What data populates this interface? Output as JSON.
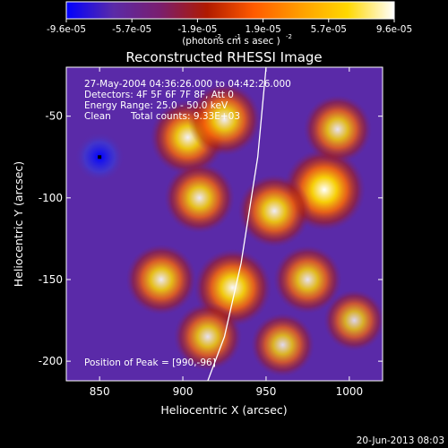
{
  "chart_data": {
    "type": "heatmap",
    "title": "Reconstructed RHESSI Image",
    "xlabel": "Heliocentric X (arcsec)",
    "ylabel": "Heliocentric Y (arcsec)",
    "xlim": [
      830,
      1020
    ],
    "ylim": [
      -212,
      -20
    ],
    "x_ticks": [
      "850",
      "900",
      "950",
      "1000"
    ],
    "x_tick_values": [
      850,
      900,
      950,
      1000
    ],
    "y_ticks": [
      "-50",
      "-100",
      "-150",
      "-200"
    ],
    "y_tick_values": [
      -50,
      -100,
      -150,
      -200
    ],
    "colorbar": {
      "ticks": [
        "-9.6e-05",
        "-5.7e-05",
        "-1.9e-05",
        "1.9e-05",
        "5.7e-05",
        "9.6e-05"
      ],
      "range": [
        -9.6e-05,
        9.6e-05
      ],
      "units_label": "(photons cm  s  asec )",
      "units_exponents": [
        "-2",
        "-1",
        "-2"
      ],
      "colors": [
        "#0000ff",
        "#5a2aa8",
        "#7a1e6e",
        "#b01a00",
        "#ff5a00",
        "#ff9e00",
        "#ffd800",
        "#ffffff"
      ]
    },
    "annotations": [
      "27-May-2004 04:36:26.000 to 04:42:26.000",
      "Detectors: 4F 5F 6F 7F 8F, Att 0",
      "Energy Range: 25.0 - 50.0 keV",
      "Clean",
      "Total counts: 9.33E+03"
    ],
    "peak_label": "Position of Peak = [990,-96]",
    "peak_position": [
      990,
      -96
    ],
    "bright_sources": [
      {
        "x": 985,
        "y": -95,
        "intensity": 1.0
      },
      {
        "x": 903,
        "y": -63,
        "intensity": 0.85
      },
      {
        "x": 925,
        "y": -52,
        "intensity": 0.8
      },
      {
        "x": 993,
        "y": -58,
        "intensity": 0.7
      },
      {
        "x": 910,
        "y": -100,
        "intensity": 0.75
      },
      {
        "x": 955,
        "y": -108,
        "intensity": 0.8
      },
      {
        "x": 887,
        "y": -150,
        "intensity": 0.75
      },
      {
        "x": 930,
        "y": -155,
        "intensity": 0.9
      },
      {
        "x": 975,
        "y": -150,
        "intensity": 0.7
      },
      {
        "x": 915,
        "y": -185,
        "intensity": 0.7
      },
      {
        "x": 960,
        "y": -190,
        "intensity": 0.6
      },
      {
        "x": 1003,
        "y": -175,
        "intensity": 0.55
      }
    ],
    "minimum_position": [
      850,
      -75
    ],
    "limb_curve": [
      [
        950,
        -20
      ],
      [
        945,
        -75
      ],
      [
        935,
        -140
      ],
      [
        925,
        -185
      ],
      [
        915,
        -212
      ]
    ]
  },
  "footer": {
    "date": "20-Jun-2013 08:03"
  }
}
